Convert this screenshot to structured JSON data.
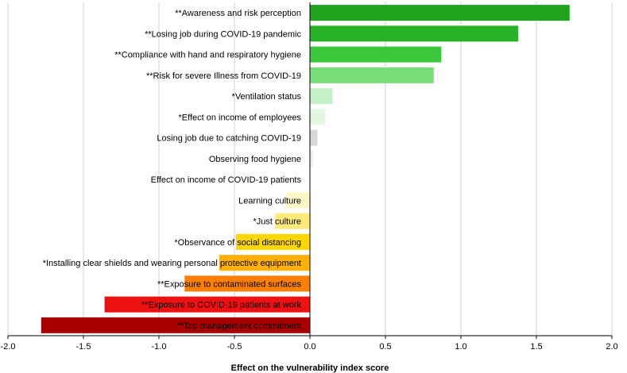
{
  "chart_data": {
    "type": "bar",
    "orientation": "horizontal",
    "title": "",
    "xlabel": "Effect on the vulnerability index score",
    "ylabel": "",
    "xlim": [
      -2.0,
      2.0
    ],
    "xticks": [
      -2.0,
      -1.5,
      -1.0,
      -0.5,
      0.0,
      0.5,
      1.0,
      1.5,
      2.0
    ],
    "xtick_labels": [
      "-2.0",
      "-1.5",
      "-1.0",
      "-0.5",
      "0.0",
      "0.5",
      "1.0",
      "1.5",
      "2.0"
    ],
    "grid": "vertical",
    "categories": [
      "**Awareness and risk perception",
      "**Losing job during COVID-19 pandemic",
      "**Compliance with hand and respiratory hygiene",
      "**Risk for severe Illness from COVID-19",
      "*Ventilation status",
      "*Effect on income of employees",
      "Losing job due to catching COVID-19",
      "Observing food hygiene",
      "Effect on income of COVID-19 patients",
      "Learning culture",
      "*Just culture",
      "*Observance of social distancing",
      "*Installing clear shields and wearing personal protective equipment",
      "**Exposure to contaminated surfaces",
      "**Exposure to COVID-19 patients at work",
      "**Top management commitment"
    ],
    "values": [
      1.72,
      1.38,
      0.87,
      0.82,
      0.15,
      0.1,
      0.05,
      0.02,
      0.0,
      -0.16,
      -0.23,
      -0.49,
      -0.6,
      -0.83,
      -1.36,
      -1.78
    ],
    "colors": [
      "#1fa31f",
      "#27b327",
      "#3cc83c",
      "#77dd77",
      "#c6f0c6",
      "#e2f7e2",
      "#d8d8d8",
      "#ebebeb",
      "#f2f2f2",
      "#fff6c8",
      "#ffea7a",
      "#ffd700",
      "#ffb000",
      "#ff8000",
      "#ee1111",
      "#a80000"
    ]
  }
}
